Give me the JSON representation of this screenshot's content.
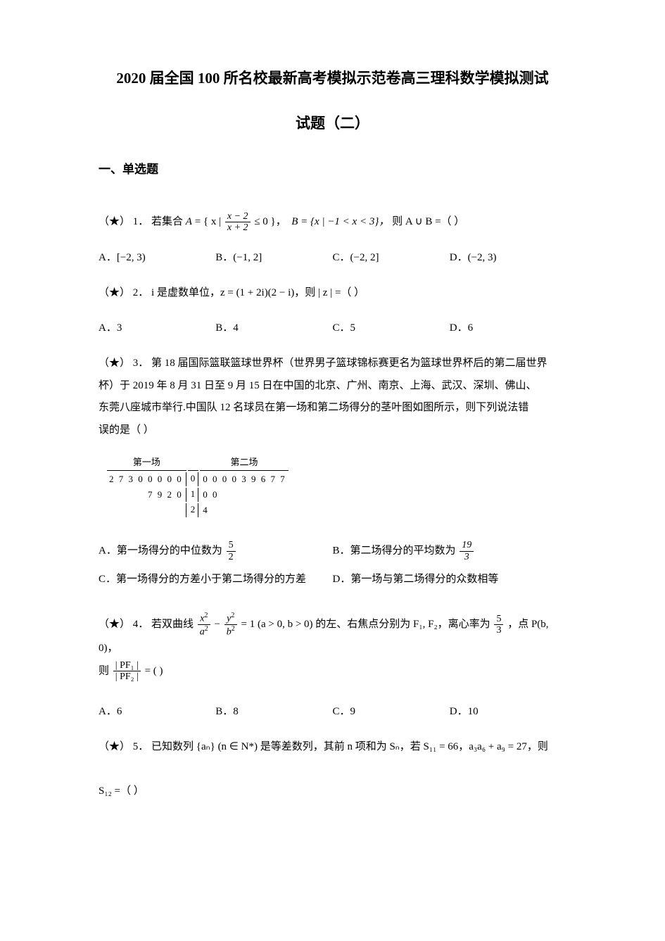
{
  "title_main": "2020 届全国 100 所名校最新高考模拟示范卷高三理科数学模拟测试",
  "title_sub": "试题（二）",
  "section": "一、单选题",
  "diff_marker": "（★）",
  "q1": {
    "num": "1．",
    "text_a": "若集合 ",
    "text_b": "，",
    "set_A_pre": "A = ",
    "set_A_frac_num": "x − 2",
    "set_A_frac_den": "x + 2",
    "set_A_cond": " ≤ 0",
    "set_B": "B = {x | −1 < x < 3}，",
    "text_c": "则 A ∪ B =（ ）",
    "optA": "A．[−2, 3)",
    "optB": "B．(−1, 2]",
    "optC": "C．(−2, 2]",
    "optD": "D．(−2, 3)"
  },
  "q2": {
    "num": "2．",
    "text": "i 是虚数单位，z = (1 + 2i)(2 − i)，则 | z | =（ ）",
    "optA": "A．3",
    "optB": "B．4",
    "optC": "C．5",
    "optD": "D．6"
  },
  "q3": {
    "num": "3．",
    "text1": "第 18 届国际篮联篮球世界杯（世界男子篮球锦标赛更名为篮球世界杯后的第二届世界",
    "text2": "杯）于 2019 年 8 月 31 日至 9 月 15 日在中国的北京、广州、南京、上海、武汉、深圳、佛山、",
    "text3": "东莞八座城市举行.中国队 12 名球员在第一场和第二场得分的茎叶图如图所示，则下列说法错",
    "text4": "误的是（ ）",
    "stem_header_left": "第一场",
    "stem_header_right": "第二场",
    "leaf": {
      "row0_left": "2 7 3 0 0 0 0 0",
      "row0_mid": "0",
      "row0_right": "0 0 0 0 3 9 6 7 7",
      "row1_left": "7 9 2 0",
      "row1_mid": "1",
      "row1_right": "0 0",
      "row2_left": "",
      "row2_mid": "2",
      "row2_right": "4"
    },
    "optA_pre": "A．第一场得分的中位数为",
    "optA_num": "5",
    "optA_den": "2",
    "optB_pre": "B．第二场得分的平均数为",
    "optB_num": "19",
    "optB_den": "3",
    "optC": "C．第一场得分的方差小于第二场得分的方差",
    "optD": "D．第一场与第二场得分的众数相等"
  },
  "q4": {
    "num": "4．",
    "text_a": "若双曲线 ",
    "eq_num1": "x",
    "eq_den1": "a",
    "eq_num2": "y",
    "eq_den2": "b",
    "text_b": " = 1 (a > 0, b > 0) 的左、右焦点分别为 F₁, F₂，离心率为 ",
    "e_num": "5",
    "e_den": "3",
    "text_c": "，点 P(b, 0)，",
    "ratio_pre": "则 ",
    "ratio_num": "| PF₁ |",
    "ratio_den": "| PF₂ |",
    "ratio_post": " = ( )",
    "optA": "A．6",
    "optB": "B．8",
    "optC": "C．9",
    "optD": "D．10"
  },
  "q5": {
    "num": "5．",
    "text_a": "已知数列 {aₙ} (n ∈ N*) 是等差数列，其前 n 项和为 Sₙ，若 S₁₁ = 66，a₃a₆ + a₉ = 27，则",
    "text_b": "S₁₂ =（ ）"
  }
}
